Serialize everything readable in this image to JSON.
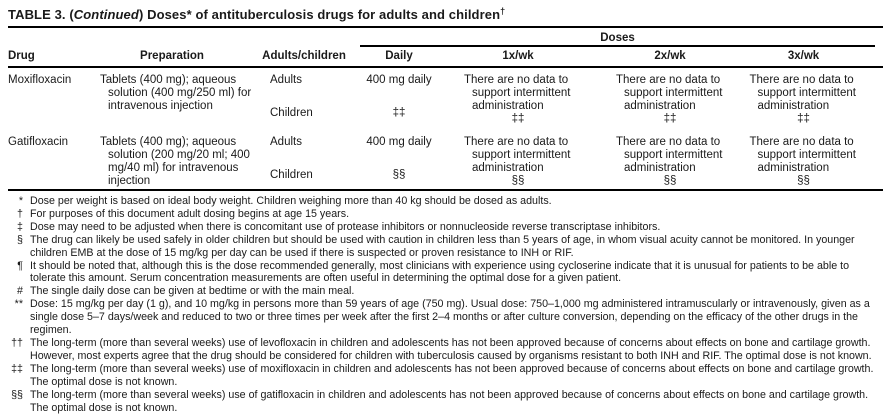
{
  "title": {
    "part1": "TABLE 3. (",
    "continued": "Continued",
    "part2": ") Doses* of antituberculosis drugs for adults and children",
    "superscript": "†"
  },
  "header": {
    "doses_group": "Doses",
    "columns": [
      "Drug",
      "Preparation",
      "Adults/children",
      "Daily",
      "1x/wk",
      "2x/wk",
      "3x/wk"
    ]
  },
  "rows": [
    {
      "drug": "Moxifloxacin",
      "preparation": "Tablets (400 mg); aqueous solution (400 mg/250 ml) for intravenous injection",
      "adults_label": "Adults",
      "children_label": "Children",
      "daily_adults": "400 mg daily",
      "daily_children": "‡‡",
      "wk1_adults": "There are no data to support intermittent administration",
      "wk1_children": "‡‡",
      "wk2_adults": "There are no data to support intermittent administration",
      "wk2_children": "‡‡",
      "wk3_adults": "There are no data to support intermittent administration",
      "wk3_children": "‡‡"
    },
    {
      "drug": "Gatifloxacin",
      "preparation": "Tablets (400 mg); aqueous solution (200 mg/20 ml; 400 mg/40 ml) for intravenous injection",
      "adults_label": "Adults",
      "children_label": "Children",
      "daily_adults": "400 mg daily",
      "daily_children": "§§",
      "wk1_adults": "There are no data to support intermittent administration",
      "wk1_children": "§§",
      "wk2_adults": "There are no data to support intermittent administration",
      "wk2_children": "§§",
      "wk3_adults": "There are no data to support intermittent administration",
      "wk3_children": "§§"
    }
  ],
  "footnotes": [
    {
      "symbol": "*",
      "text": "Dose per weight is based on ideal body weight. Children weighing more than 40 kg should be dosed as adults."
    },
    {
      "symbol": "†",
      "text": "For purposes of this document adult dosing begins at age 15 years."
    },
    {
      "symbol": "‡",
      "text": "Dose may need to be adjusted when there is concomitant use of protease inhibitors or nonnucleoside reverse transcriptase inhibitors."
    },
    {
      "symbol": "§",
      "text": "The drug can likely be used safely in older children but should be used with caution in children less than 5 years of age, in whom visual acuity cannot be monitored. In younger children EMB at the dose of 15 mg/kg per day can be used if there is suspected or proven resistance to INH or RIF."
    },
    {
      "symbol": "¶",
      "text": "It should be noted that, although this is the dose recommended generally, most clinicians with experience using cycloserine indicate that it is unusual for patients to be able to tolerate this amount. Serum concentration measurements are often useful in determining the optimal dose for a given patient."
    },
    {
      "symbol": "#",
      "text": "The single daily dose can be given at bedtime or with the main meal."
    },
    {
      "symbol": "**",
      "text": "Dose: 15 mg/kg per day (1 g), and 10 mg/kg in persons more than 59 years of age (750 mg). Usual dose: 750–1,000 mg administered intramuscularly or intravenously, given as a single dose 5–7 days/week and reduced to two or three times per week after the first 2–4 months or after culture conversion, depending on the efficacy of the other drugs in the regimen."
    },
    {
      "symbol": "††",
      "text": "The long-term (more than several weeks) use of levofloxacin in children and adolescents has not been approved because of concerns about effects on bone and cartilage growth. However, most experts agree that the drug should be considered for children with tuberculosis caused by organisms resistant to both INH and RIF. The optimal dose is not known."
    },
    {
      "symbol": "‡‡",
      "text": "The long-term (more than several weeks) use of moxifloxacin in children and adolescents has not been approved because of concerns about effects on bone and cartilage growth. The optimal dose is not known."
    },
    {
      "symbol": "§§",
      "text": "The long-term (more than several weeks) use of gatifloxacin in children and adolescents has not been approved because of concerns about effects on bone and cartilage growth. The optimal dose is not known."
    }
  ]
}
